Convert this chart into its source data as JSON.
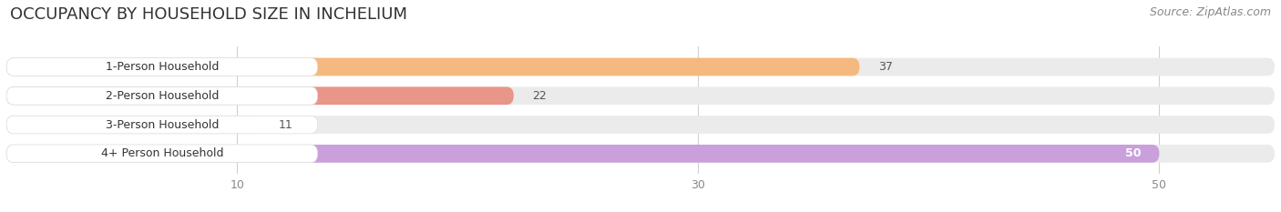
{
  "title": "OCCUPANCY BY HOUSEHOLD SIZE IN INCHELIUM",
  "source": "Source: ZipAtlas.com",
  "categories": [
    "1-Person Household",
    "2-Person Household",
    "3-Person Household",
    "4+ Person Household"
  ],
  "values": [
    37,
    22,
    11,
    50
  ],
  "colors": [
    "#f5b97f",
    "#e8958a",
    "#a8c4e0",
    "#c9a0dc"
  ],
  "xlim": [
    0,
    55
  ],
  "xticks": [
    10,
    30,
    50
  ],
  "bar_height": 0.62,
  "background_color": "#ffffff",
  "bar_bg_color": "#ebebeb",
  "label_color_inside": "#ffffff",
  "label_color_outside": "#555555",
  "title_fontsize": 13,
  "source_fontsize": 9,
  "label_fontsize": 9,
  "category_fontsize": 9,
  "value_inside_threshold": 0.75
}
